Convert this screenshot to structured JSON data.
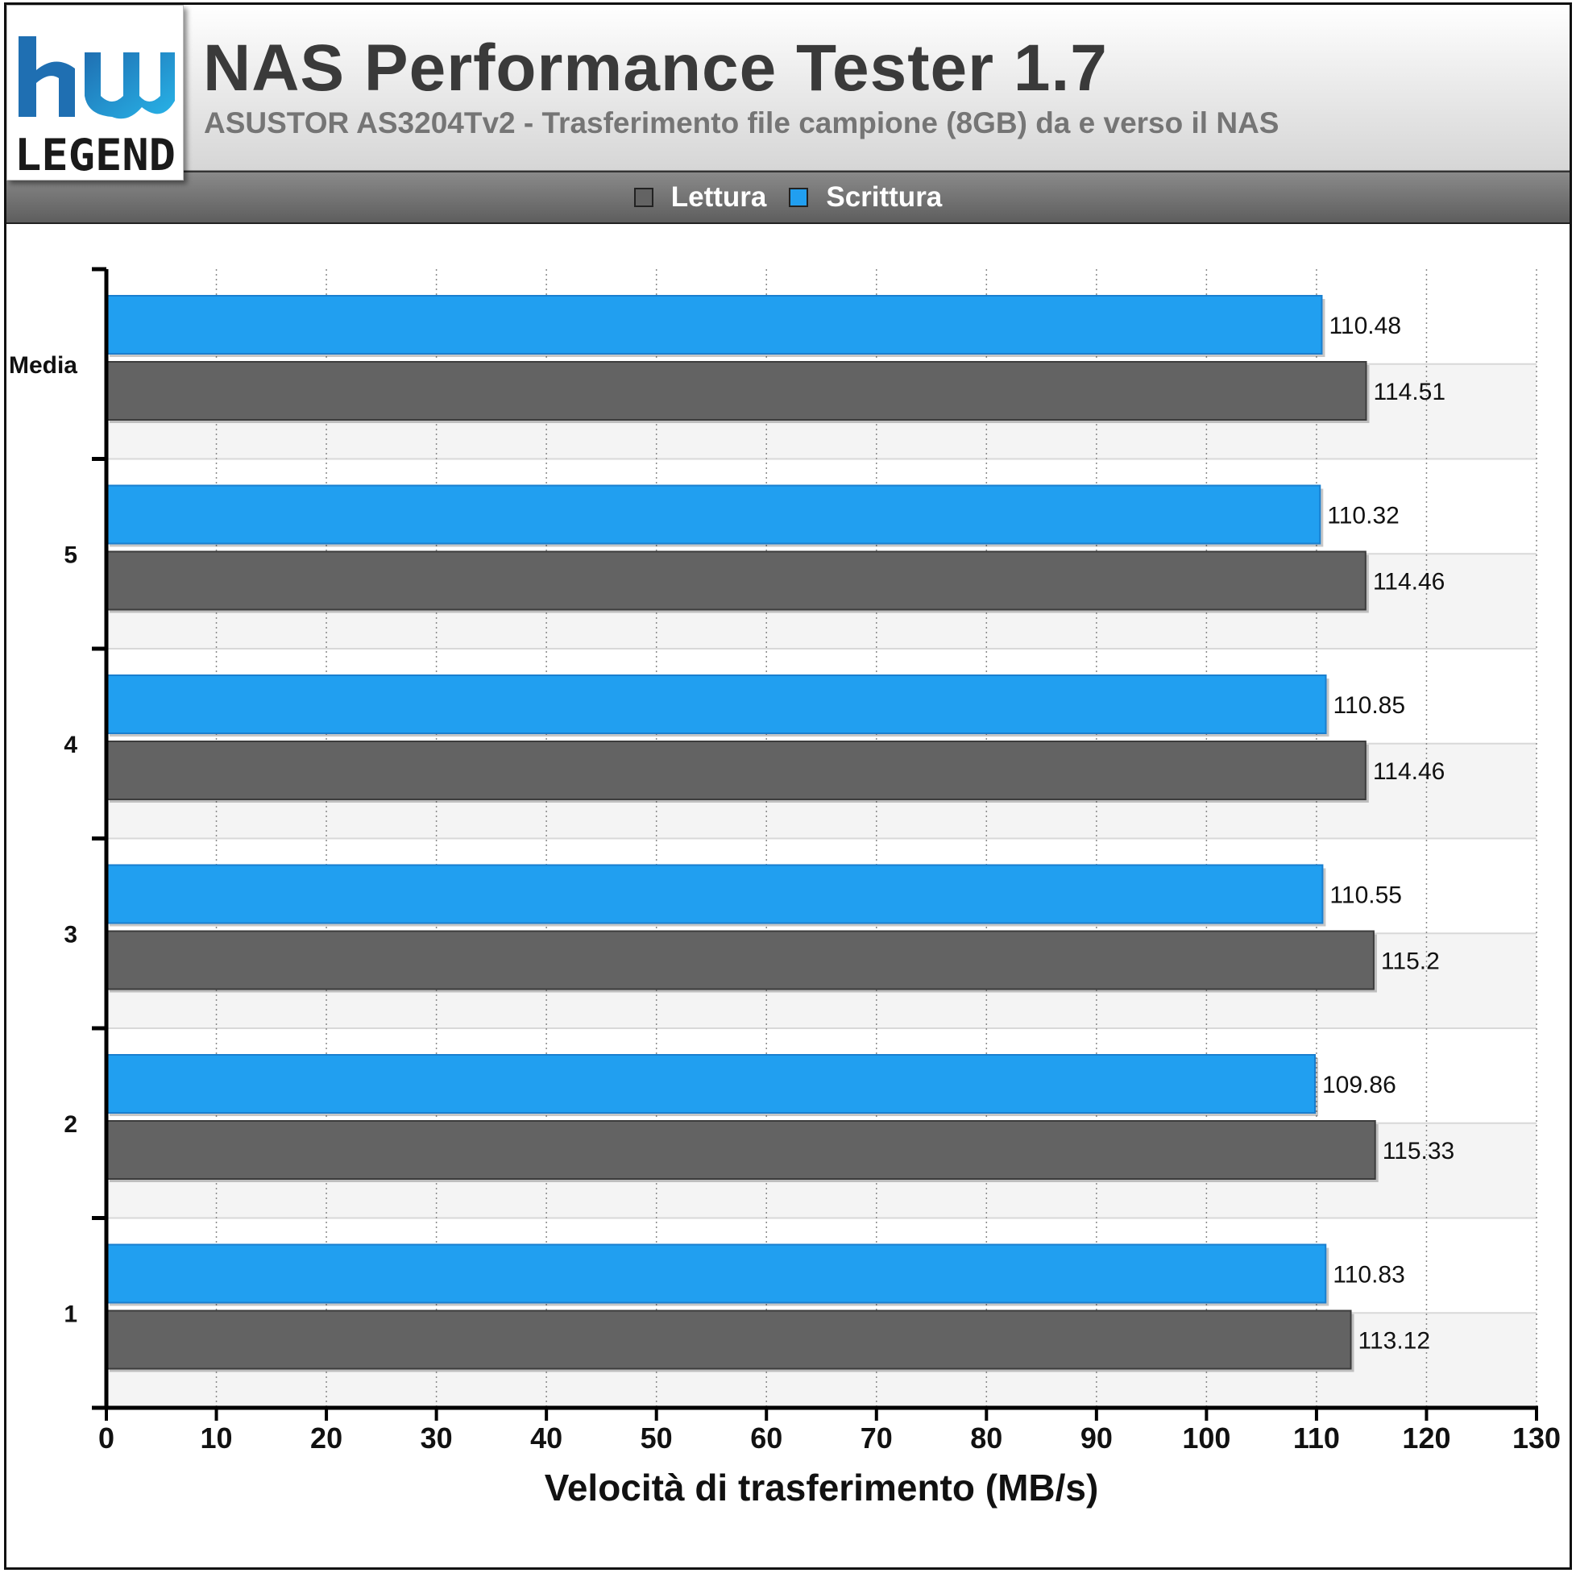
{
  "header": {
    "title": "NAS Performance Tester 1.7",
    "subtitle": "ASUSTOR AS3204Tv2 - Trasferimento file campione (8GB) da e verso il NAS"
  },
  "logo": {
    "text_top": "hw",
    "text_bottom": "LEGEND",
    "colors": [
      "#1f6fb2",
      "#28b4e8"
    ]
  },
  "legend": [
    {
      "label": "Lettura",
      "color": "#636363"
    },
    {
      "label": "Scrittura",
      "color": "#219ff0"
    }
  ],
  "chart_data": {
    "type": "bar",
    "orientation": "horizontal",
    "categories": [
      "Media",
      "5",
      "4",
      "3",
      "2",
      "1"
    ],
    "series": [
      {
        "name": "Scrittura",
        "color": "#219ff0",
        "values": [
          110.48,
          110.32,
          110.85,
          110.55,
          109.86,
          110.83
        ]
      },
      {
        "name": "Lettura",
        "color": "#636363",
        "values": [
          114.51,
          114.46,
          114.46,
          115.2,
          115.33,
          113.12
        ]
      }
    ],
    "value_labels": {
      "Scrittura": [
        "110.48",
        "110.32",
        "110.85",
        "110.55",
        "109.86",
        "110.83"
      ],
      "Lettura": [
        "114.51",
        "114.46",
        "114.46",
        "115.2",
        "115.33",
        "113.12"
      ]
    },
    "xlabel": "Velocità di trasferimento (MB/s)",
    "ylabel": "",
    "xlim": [
      0,
      130
    ],
    "xticks": [
      0,
      10,
      20,
      30,
      40,
      50,
      60,
      70,
      80,
      90,
      100,
      110,
      120,
      130
    ],
    "grid": true,
    "legend_position": "top-center"
  }
}
